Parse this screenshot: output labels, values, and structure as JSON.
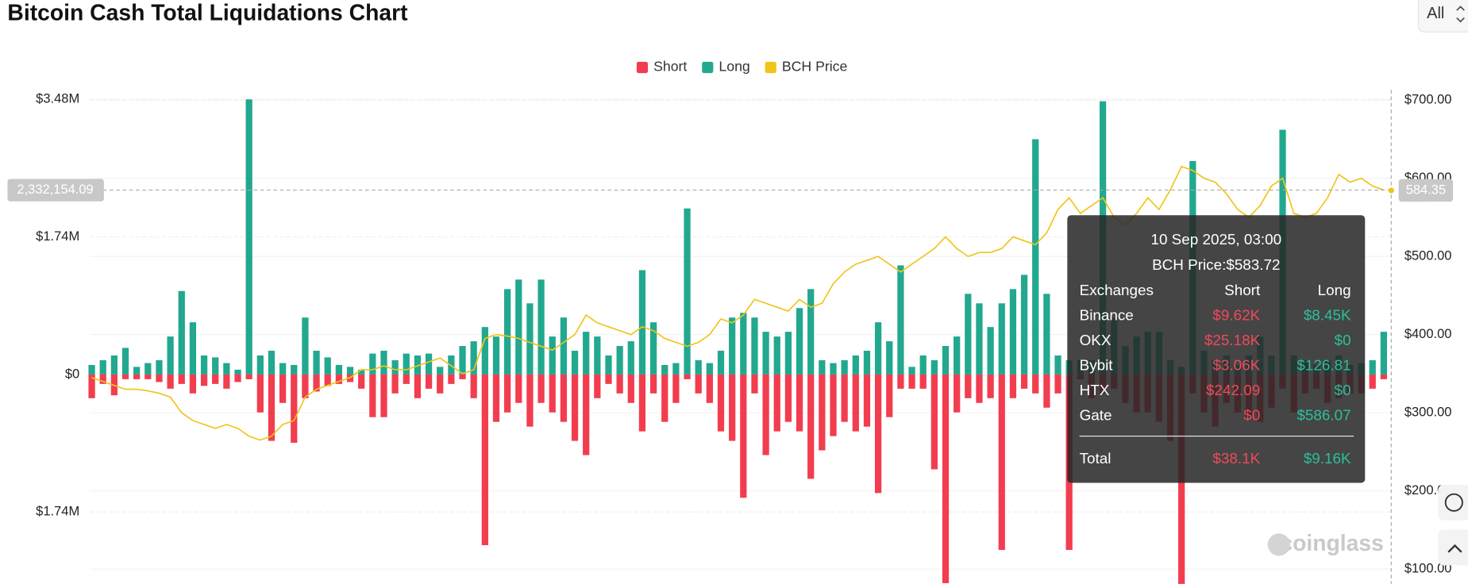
{
  "chart_data": {
    "type": "bar",
    "title": "Bitcoin Cash Total Liquidations Chart",
    "range_selector": "All",
    "watermark": "coinglass",
    "ylim": [
      -2650000,
      3600000
    ],
    "yticks": [
      {
        "value": 3480000,
        "label": "$3.48M"
      },
      {
        "value": 1740000,
        "label": "$1.74M"
      },
      {
        "value": 0,
        "label": "$0"
      },
      {
        "value": -1740000,
        "label": "$1.74M"
      }
    ],
    "y2lim": [
      81,
      713
    ],
    "y2ticks": [
      {
        "value": 700,
        "label": "$700.00"
      },
      {
        "value": 600,
        "label": "$600.00"
      },
      {
        "value": 500,
        "label": "$500.00"
      },
      {
        "value": 400,
        "label": "$400.00"
      },
      {
        "value": 300,
        "label": "$300.00"
      },
      {
        "value": 200,
        "label": "$200.00"
      },
      {
        "value": 100,
        "label": "$100.00"
      }
    ],
    "grid": true,
    "legend": "top",
    "crosshair": {
      "y": {
        "value": 2332154.09,
        "label": "2,332,154.09"
      },
      "y2": 584.35
    },
    "series": [
      {
        "name": "Short",
        "color": "#f23d4f",
        "values": [
          -300000,
          -120000,
          -264000,
          -60000,
          -60000,
          -60000,
          -96000,
          -180000,
          -120000,
          -240000,
          -144000,
          -120000,
          -180000,
          -96000,
          -60000,
          -480000,
          -840000,
          -360000,
          -864000,
          -300000,
          -216000,
          -144000,
          -120000,
          -96000,
          -180000,
          -540000,
          -540000,
          -240000,
          -120000,
          -300000,
          -180000,
          -240000,
          -120000,
          -60000,
          -300000,
          -2160000,
          -600000,
          -480000,
          -360000,
          -660000,
          -360000,
          -480000,
          -600000,
          -840000,
          -1020000,
          -300000,
          -120000,
          -240000,
          -360000,
          -720000,
          -240000,
          -600000,
          -360000,
          -60000,
          -240000,
          -360000,
          -720000,
          -840000,
          -1560000,
          -240000,
          -1020000,
          -720000,
          -600000,
          -720000,
          -1320000,
          -960000,
          -780000,
          -600000,
          -720000,
          -660000,
          -1500000,
          -540000,
          -180000,
          -180000,
          -180000,
          -1200000,
          -2640000,
          -480000,
          -300000,
          -360000,
          -300000,
          -2220000,
          -300000,
          -180000,
          -240000,
          -420000,
          -240000,
          -2220000,
          -60000,
          -300000,
          -240000,
          -180000,
          -360000,
          -480000,
          -480000,
          -600000,
          -840000,
          -2760000,
          -240000,
          -480000,
          -660000,
          -360000,
          -480000,
          -540000,
          -600000,
          -420000,
          -180000,
          -480000,
          -240000,
          -180000,
          -360000,
          -300000,
          -240000,
          -240000,
          -180000,
          -60000
        ]
      },
      {
        "name": "Long",
        "color": "#22a88f",
        "values": [
          120000,
          180000,
          240000,
          336000,
          96000,
          144000,
          180000,
          480000,
          1056000,
          660000,
          240000,
          216000,
          144000,
          60000,
          3480000,
          240000,
          300000,
          144000,
          120000,
          720000,
          300000,
          216000,
          120000,
          96000,
          60000,
          264000,
          300000,
          180000,
          264000,
          240000,
          264000,
          96000,
          240000,
          360000,
          420000,
          600000,
          480000,
          1080000,
          1200000,
          900000,
          1200000,
          480000,
          720000,
          300000,
          540000,
          480000,
          240000,
          360000,
          420000,
          1320000,
          660000,
          120000,
          144000,
          2100000,
          180000,
          144000,
          300000,
          720000,
          780000,
          720000,
          540000,
          480000,
          540000,
          840000,
          1080000,
          180000,
          144000,
          180000,
          240000,
          300000,
          660000,
          420000,
          1380000,
          96000,
          240000,
          180000,
          360000,
          480000,
          1020000,
          900000,
          600000,
          900000,
          1080000,
          1260000,
          2976000,
          1020000,
          240000,
          180000,
          180000,
          180000,
          3456000,
          720000,
          360000,
          480000,
          540000,
          540000,
          180000,
          96000,
          2700000,
          300000,
          180000,
          240000,
          120000,
          240000,
          480000,
          240000,
          3096000,
          240000,
          180000,
          120000,
          180000,
          240000,
          120000,
          144000,
          180000,
          540000
        ]
      },
      {
        "name": "BCH Price",
        "color": "#f0c419",
        "type": "line",
        "axis": "y2",
        "values": [
          345,
          340,
          335,
          330,
          330,
          328,
          325,
          320,
          300,
          290,
          285,
          280,
          285,
          280,
          270,
          265,
          270,
          285,
          290,
          320,
          330,
          335,
          340,
          345,
          355,
          355,
          360,
          355,
          355,
          360,
          365,
          370,
          360,
          350,
          355,
          395,
          400,
          398,
          395,
          390,
          385,
          380,
          390,
          400,
          425,
          415,
          410,
          405,
          400,
          410,
          405,
          395,
          390,
          385,
          390,
          400,
          420,
          415,
          425,
          445,
          440,
          435,
          430,
          445,
          435,
          440,
          465,
          480,
          490,
          495,
          500,
          490,
          480,
          490,
          500,
          510,
          525,
          510,
          500,
          505,
          505,
          510,
          525,
          520,
          515,
          530,
          560,
          575,
          555,
          565,
          575,
          550,
          540,
          555,
          575,
          560,
          585,
          615,
          610,
          600,
          595,
          580,
          560,
          550,
          565,
          590,
          600,
          555,
          550,
          555,
          575,
          605,
          595,
          600,
          590,
          585
        ]
      }
    ],
    "tooltip": {
      "title": "10 Sep 2025, 03:00",
      "price": "BCH Price:$583.72",
      "headers": [
        "Exchanges",
        "Short",
        "Long"
      ],
      "rows": [
        [
          "Binance",
          "$9.62K",
          "$8.45K"
        ],
        [
          "OKX",
          "$25.18K",
          "$0"
        ],
        [
          "Bybit",
          "$3.06K",
          "$126.81"
        ],
        [
          "HTX",
          "$242.09",
          "$0"
        ],
        [
          "Gate",
          "$0",
          "$586.07"
        ]
      ],
      "total": [
        "Total",
        "$38.1K",
        "$9.16K"
      ]
    }
  }
}
